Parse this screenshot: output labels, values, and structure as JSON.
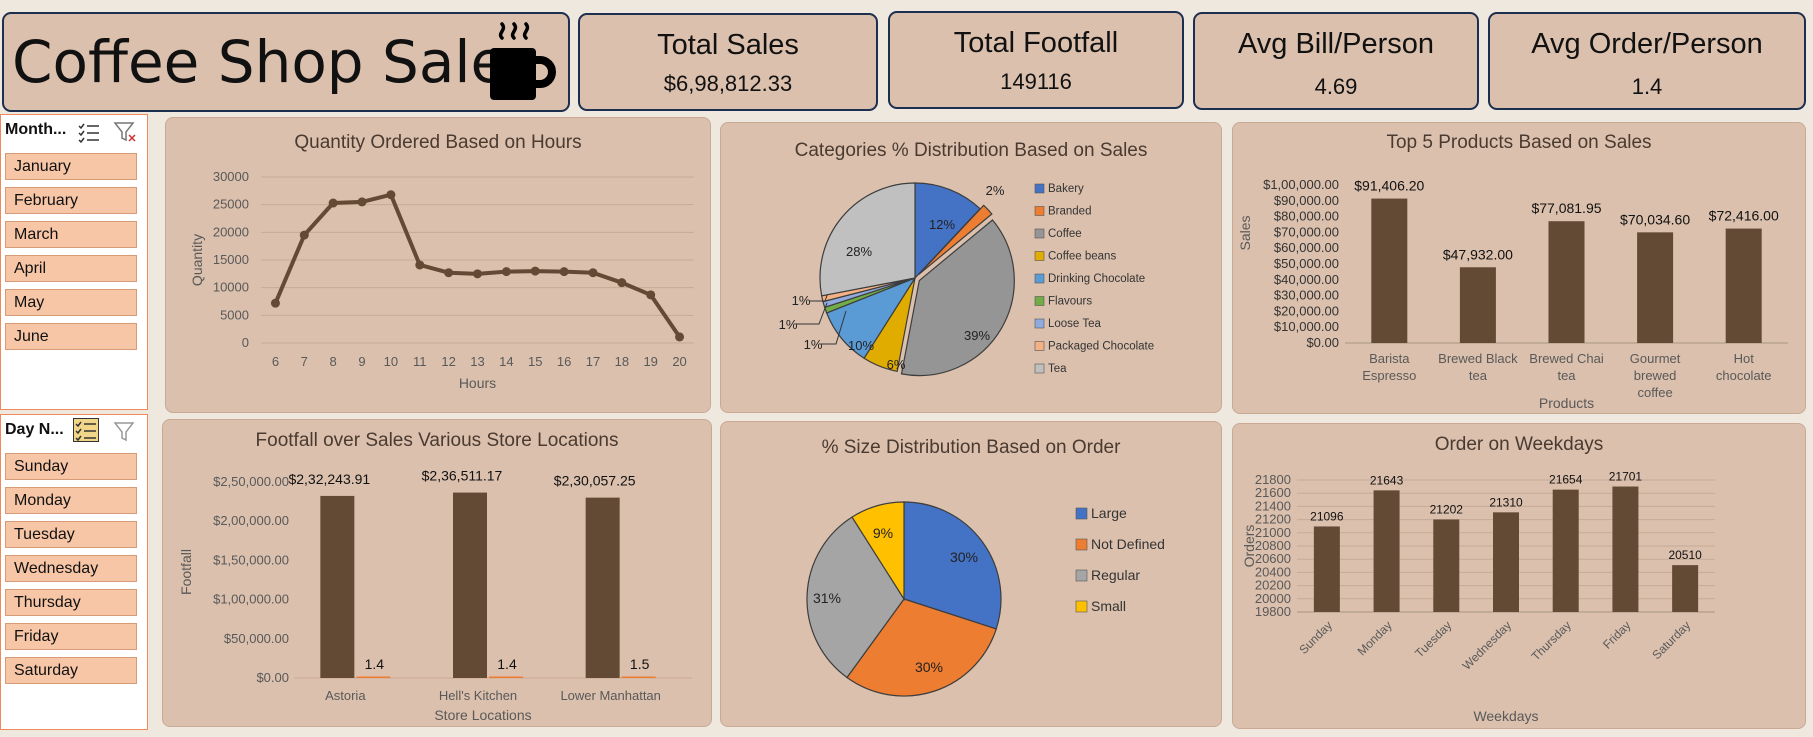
{
  "header": {
    "title": "Coffee Shop Sales"
  },
  "kpis": [
    {
      "label": "Total Sales",
      "value": "$6,98,812.33"
    },
    {
      "label": "Total Footfall",
      "value": "149116"
    },
    {
      "label": "Avg Bill/Person",
      "value": "4.69"
    },
    {
      "label": "Avg Order/Person",
      "value": "1.4"
    }
  ],
  "slicers": {
    "month": {
      "header": "Month...",
      "items": [
        "January",
        "February",
        "March",
        "April",
        "May",
        "June"
      ]
    },
    "day": {
      "header": "Day N...",
      "items": [
        "Sunday",
        "Monday",
        "Tuesday",
        "Wednesday",
        "Thursday",
        "Friday",
        "Saturday"
      ]
    }
  },
  "chart_data": [
    {
      "type": "line",
      "title": "Quantity Ordered Based on Hours",
      "xlabel": "Hours",
      "ylabel": "Quantity",
      "x": [
        "6",
        "7",
        "8",
        "9",
        "10",
        "11",
        "12",
        "13",
        "14",
        "15",
        "16",
        "17",
        "18",
        "19",
        "20"
      ],
      "values": [
        7200,
        19500,
        25300,
        25500,
        26800,
        14100,
        12700,
        12500,
        12900,
        13000,
        12900,
        12700,
        10900,
        8700,
        1100
      ],
      "ylim": [
        0,
        30000
      ],
      "yticks": [
        "0",
        "5000",
        "10000",
        "15000",
        "20000",
        "25000",
        "30000"
      ],
      "grid": true,
      "color": "#624a35"
    },
    {
      "type": "pie",
      "title": "Categories % Distribution Based on Sales",
      "legend": "right",
      "slices": [
        {
          "name": "Bakery",
          "value": 12,
          "label": "12%",
          "color": "#4472c4"
        },
        {
          "name": "Branded",
          "value": 2,
          "label": "2%",
          "color": "#ed7d31"
        },
        {
          "name": "Coffee",
          "value": 39,
          "label": "39%",
          "color": "#959595"
        },
        {
          "name": "Coffee beans",
          "value": 6,
          "label": "6%",
          "color": "#e0ac00"
        },
        {
          "name": "Drinking Chocolate",
          "value": 10,
          "label": "10%",
          "color": "#5b9bd5"
        },
        {
          "name": "Flavours",
          "value": 1,
          "label": "1%",
          "color": "#70ad47"
        },
        {
          "name": "Loose Tea",
          "value": 1,
          "label": "1%",
          "color": "#8faadc"
        },
        {
          "name": "Packaged Chocolate",
          "value": 1,
          "label": "1%",
          "color": "#f4b183"
        },
        {
          "name": "Tea",
          "value": 28,
          "label": "28%",
          "color": "#c0c0c0"
        }
      ]
    },
    {
      "type": "bar",
      "title": "Top 5 Products Based on Sales",
      "xlabel": "Products",
      "ylabel": "Sales",
      "categories": [
        "Barista Espresso",
        "Brewed Black tea",
        "Brewed Chai tea",
        "Gourmet brewed coffee",
        "Hot chocolate"
      ],
      "values": [
        91406.2,
        47932.0,
        77081.95,
        70034.6,
        72416.0
      ],
      "data_labels": [
        "$91,406.20",
        "$47,932.00",
        "$77,081.95",
        "$70,034.60",
        "$72,416.00"
      ],
      "ylim": [
        0,
        100000
      ],
      "yticks": [
        "$0.00",
        "$10,000.00",
        "$20,000.00",
        "$30,000.00",
        "$40,000.00",
        "$50,000.00",
        "$60,000.00",
        "$70,000.00",
        "$80,000.00",
        "$90,000.00",
        "$1,00,000.00"
      ],
      "color": "#624a35"
    },
    {
      "type": "bar",
      "title": "Footfall over Sales Various Store Locations",
      "xlabel": "Store Locations",
      "ylabel": "Footfall",
      "categories": [
        "Astoria",
        "Hell's Kitchen",
        "Lower Manhattan"
      ],
      "series": [
        {
          "values": [
            232243.91,
            236511.17,
            230057.25
          ],
          "data_labels": [
            "$2,32,243.91",
            "$2,36,511.17",
            "$2,30,057.25"
          ],
          "color": "#624a35"
        },
        {
          "values": [
            1.4,
            1.4,
            1.5
          ],
          "data_labels": [
            "1.4",
            "1.4",
            "1.5"
          ],
          "color": "#ed7d31"
        }
      ],
      "ylim": [
        0,
        250000
      ],
      "yticks": [
        "$0.00",
        "$50,000.00",
        "$1,00,000.00",
        "$1,50,000.00",
        "$2,00,000.00",
        "$2,50,000.00"
      ]
    },
    {
      "type": "pie",
      "title": "% Size Distribution Based on Order",
      "legend": "right",
      "slices": [
        {
          "name": "Large",
          "value": 30,
          "label": "30%",
          "color": "#4472c4"
        },
        {
          "name": "Not Defined",
          "value": 30,
          "label": "30%",
          "color": "#ed7d31"
        },
        {
          "name": "Regular",
          "value": 31,
          "label": "31%",
          "color": "#a5a5a5"
        },
        {
          "name": "Small",
          "value": 9,
          "label": "9%",
          "color": "#ffc000"
        }
      ]
    },
    {
      "type": "bar",
      "title": "Order on Weekdays",
      "xlabel": "Weekdays",
      "ylabel": "Orders",
      "categories": [
        "Sunday",
        "Monday",
        "Tuesday",
        "Wednesday",
        "Thursday",
        "Friday",
        "Saturday"
      ],
      "values": [
        21096,
        21643,
        21202,
        21310,
        21654,
        21701,
        20510
      ],
      "data_labels": [
        "21096",
        "21643",
        "21202",
        "21310",
        "21654",
        "21701",
        "20510"
      ],
      "ylim": [
        19800,
        21800
      ],
      "yticks": [
        "19800",
        "20000",
        "20200",
        "20400",
        "20600",
        "20800",
        "21000",
        "21200",
        "21400",
        "21600",
        "21800"
      ],
      "grid": true,
      "color": "#624a35"
    }
  ]
}
